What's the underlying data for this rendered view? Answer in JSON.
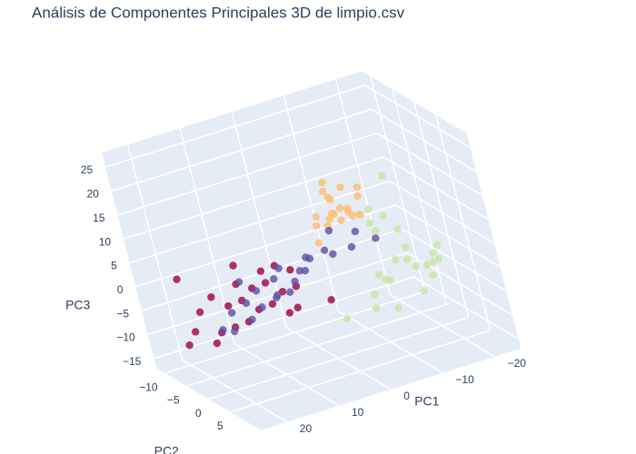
{
  "chart_data": {
    "type": "scatter3d",
    "title": "Análisis de Componentes Principales 3D de limpio.csv",
    "x_label": "PC1",
    "y_label": "PC2",
    "z_label": "PC3",
    "xlim": [
      -25,
      25
    ],
    "ylim": [
      -12,
      12
    ],
    "zlim": [
      -17,
      28
    ],
    "xticks": [
      {
        "value": -20,
        "label": "−20"
      },
      {
        "value": -10,
        "label": "−10"
      },
      0,
      10,
      20
    ],
    "yticks": [
      {
        "value": -10,
        "label": "−10"
      },
      {
        "value": -5,
        "label": "−5"
      },
      0,
      5
    ],
    "zticks": [
      {
        "value": -15,
        "label": "−15"
      },
      {
        "value": -10,
        "label": "−10"
      },
      {
        "value": -5,
        "label": "−5"
      },
      0,
      5,
      10,
      15,
      20,
      25
    ],
    "grid": true,
    "series": [
      {
        "color": "#c5e7a1",
        "x": [
          -14,
          -10,
          -18,
          -8,
          -12,
          -15,
          -6,
          -11,
          -16,
          -9,
          -13,
          -19,
          -7,
          -12,
          -10,
          -17,
          -14,
          -5,
          -11,
          -13,
          -20,
          -8,
          -14,
          -9,
          0
        ],
        "y": [
          4,
          7,
          3,
          6,
          9,
          2,
          5,
          1,
          8,
          3,
          6,
          5,
          9,
          0,
          4,
          7,
          10,
          6,
          2,
          8,
          4,
          3,
          3,
          8,
          5
        ],
        "z": [
          1,
          4,
          -2,
          0,
          3,
          6,
          -3,
          8,
          2,
          -1,
          5,
          0,
          -4,
          10,
          -2,
          3,
          1,
          -5,
          7,
          -3,
          2,
          12,
          18,
          14,
          -6
        ]
      },
      {
        "color": "#fdbe72",
        "x": [
          -7,
          -5,
          -9,
          -4,
          -8,
          -6,
          -10,
          -3,
          -7,
          -5,
          -9,
          -6,
          -8,
          -4,
          -2,
          -7,
          -11,
          -6,
          -5,
          -3
        ],
        "y": [
          0,
          1,
          -1,
          2,
          0,
          -2,
          1,
          -1,
          3,
          0,
          2,
          -1,
          -2,
          1,
          0,
          2,
          0,
          -3,
          1,
          -2
        ],
        "z": [
          12,
          15,
          10,
          13,
          16,
          9,
          14,
          11,
          12,
          18,
          11,
          14,
          8,
          17,
          10,
          13,
          15,
          7,
          12,
          5
        ]
      },
      {
        "color": "#9e0142",
        "x": [
          2,
          3,
          4,
          5,
          6,
          7,
          8,
          9,
          10,
          11,
          12,
          13,
          14,
          15,
          16,
          17,
          18,
          19,
          20,
          21,
          22,
          6,
          10,
          3,
          -2
        ],
        "y": [
          -4,
          -2,
          -5,
          -3,
          -6,
          -4,
          -2,
          -5,
          -3,
          -6,
          -4,
          -2,
          -5,
          -3,
          -6,
          -4,
          -7,
          -3,
          -8,
          -5,
          -6,
          -1,
          -7,
          -3,
          -1
        ],
        "z": [
          0,
          -2,
          1,
          -3,
          0,
          -1,
          -4,
          -2,
          -5,
          -1,
          -3,
          -6,
          -4,
          -7,
          -2,
          -8,
          -5,
          -9,
          2,
          -7,
          -10,
          -6,
          2,
          -7,
          -6
        ]
      },
      {
        "color": "#5e4fa2",
        "x": [
          -12,
          -10,
          -8,
          -6,
          -5,
          -3,
          -2,
          0,
          1,
          2,
          3,
          4,
          5,
          6,
          7,
          8,
          9,
          10,
          12,
          13,
          15,
          16,
          18,
          11
        ],
        "y": [
          0,
          -2,
          -1,
          -3,
          -2,
          -1,
          -4,
          -2,
          -3,
          0,
          -2,
          -4,
          -1,
          -3,
          -2,
          0,
          -4,
          -2,
          -3,
          -1,
          -3,
          -2,
          -2,
          -5
        ],
        "z": [
          4,
          5,
          3,
          6,
          2,
          4,
          1,
          3,
          0,
          2,
          -1,
          1,
          -2,
          0,
          -3,
          -1,
          -2,
          -4,
          -3,
          -5,
          -4,
          -7,
          -6,
          0
        ]
      }
    ]
  }
}
